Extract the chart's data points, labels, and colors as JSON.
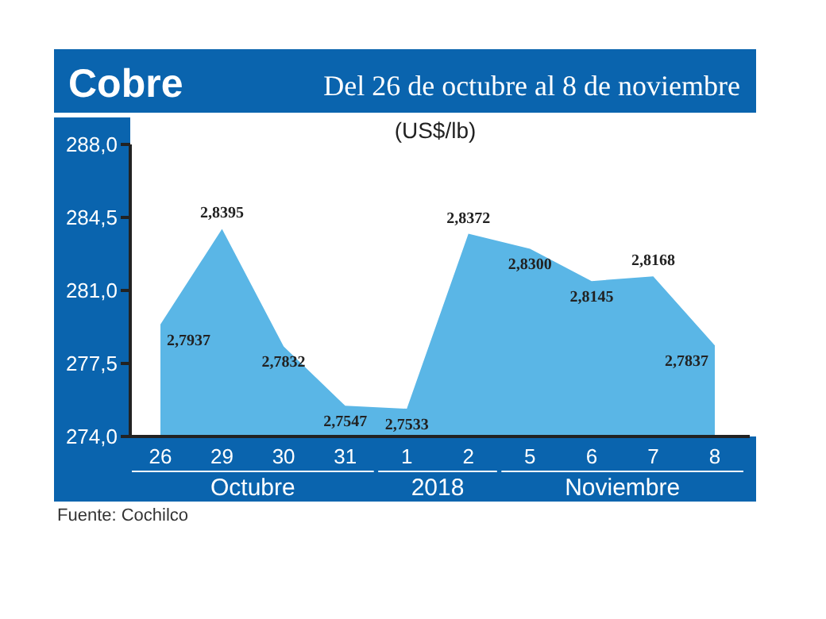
{
  "chart_data": {
    "type": "area",
    "title": "Cobre",
    "subtitle": "Del 26 de octubre al 8 de noviembre",
    "ylabel": "(US$/lb)",
    "categories": [
      "26",
      "29",
      "30",
      "31",
      "1",
      "2",
      "5",
      "6",
      "7",
      "8"
    ],
    "series": [
      {
        "color": "#5ab6e6",
        "values": [
          279.37,
          283.95,
          278.32,
          275.47,
          275.33,
          283.72,
          283.0,
          281.45,
          281.68,
          278.37
        ],
        "value_labels": [
          "2,7937",
          "2,8395",
          "2,7832",
          "2,7547",
          "2,7533",
          "2,8372",
          "2,8300",
          "2,8145",
          "2,8168",
          "2,7837"
        ]
      }
    ],
    "ylim": [
      274,
      288
    ],
    "yticks": [
      {
        "value": 274,
        "label": "274,0"
      },
      {
        "value": 277.5,
        "label": "277,5"
      },
      {
        "value": 281,
        "label": "281,0"
      },
      {
        "value": 284.5,
        "label": "284,5"
      },
      {
        "value": 288,
        "label": "288,0"
      }
    ],
    "grid": false,
    "annotations": [
      "Octubre",
      "2018",
      "Noviembre",
      "Fuente: Cochilco"
    ]
  }
}
